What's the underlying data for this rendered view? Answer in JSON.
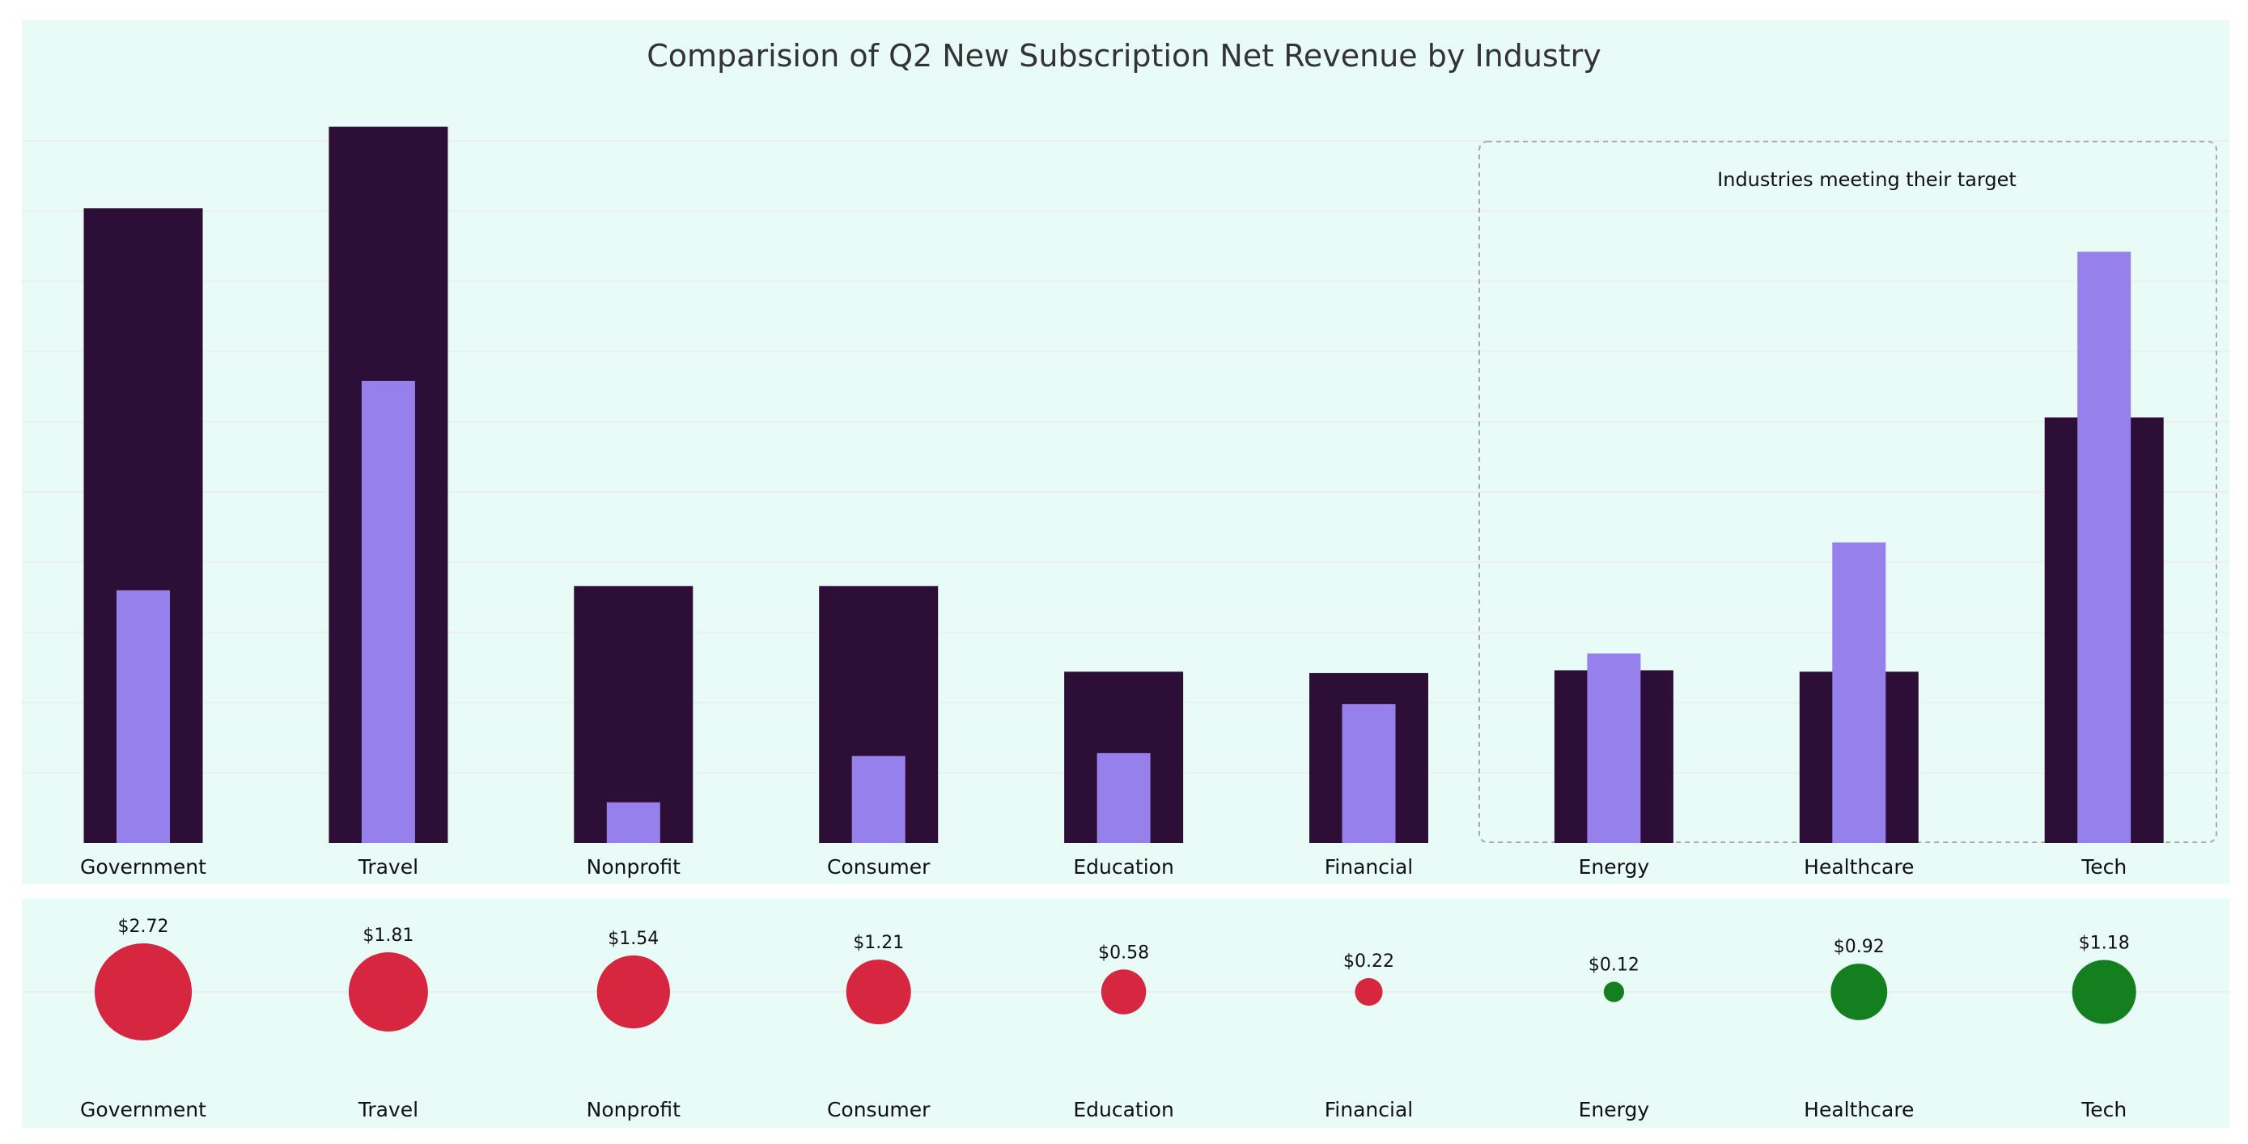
{
  "chart_data": [
    {
      "type": "bar",
      "title": "Comparision of Q2 New Subscription Net Revenue by Industry",
      "xlabel": "",
      "ylabel": "",
      "categories": [
        "Government",
        "Travel",
        "Nonprofit",
        "Consumer",
        "Education",
        "Financial",
        "Energy",
        "Healthcare",
        "Tech"
      ],
      "series": [
        {
          "values": [
            4.52,
            5.1,
            1.83,
            1.83,
            1.22,
            1.21,
            1.23,
            1.22,
            3.03
          ]
        },
        {
          "values": [
            1.8,
            3.29,
            0.29,
            0.62,
            0.64,
            0.99,
            1.35,
            2.14,
            4.21
          ]
        }
      ],
      "ylim": [
        0,
        5.5
      ],
      "grid": true,
      "colors": {
        "wide_bar": "#2d0e36",
        "narrow_bar": "#9680ec",
        "background": "#e8fbf6",
        "gridline": "#eeeef0"
      },
      "annotation": {
        "text": "Industries meeting their target",
        "covers": [
          "Energy",
          "Healthcare",
          "Tech"
        ]
      }
    },
    {
      "type": "scatter",
      "categories": [
        "Government",
        "Travel",
        "Nonprofit",
        "Consumer",
        "Education",
        "Financial",
        "Energy",
        "Healthcare",
        "Tech"
      ],
      "values": [
        2.72,
        1.81,
        1.54,
        1.21,
        0.58,
        0.22,
        0.12,
        0.92,
        1.18
      ],
      "labels": [
        "$2.72",
        "$1.81",
        "$1.54",
        "$1.21",
        "$0.58",
        "$0.22",
        "$0.12",
        "$0.92",
        "$1.18"
      ],
      "status": [
        "below",
        "below",
        "below",
        "below",
        "below",
        "below",
        "meets",
        "meets",
        "meets"
      ],
      "colors": {
        "below": "#d62640",
        "meets": "#137f1f"
      }
    }
  ]
}
